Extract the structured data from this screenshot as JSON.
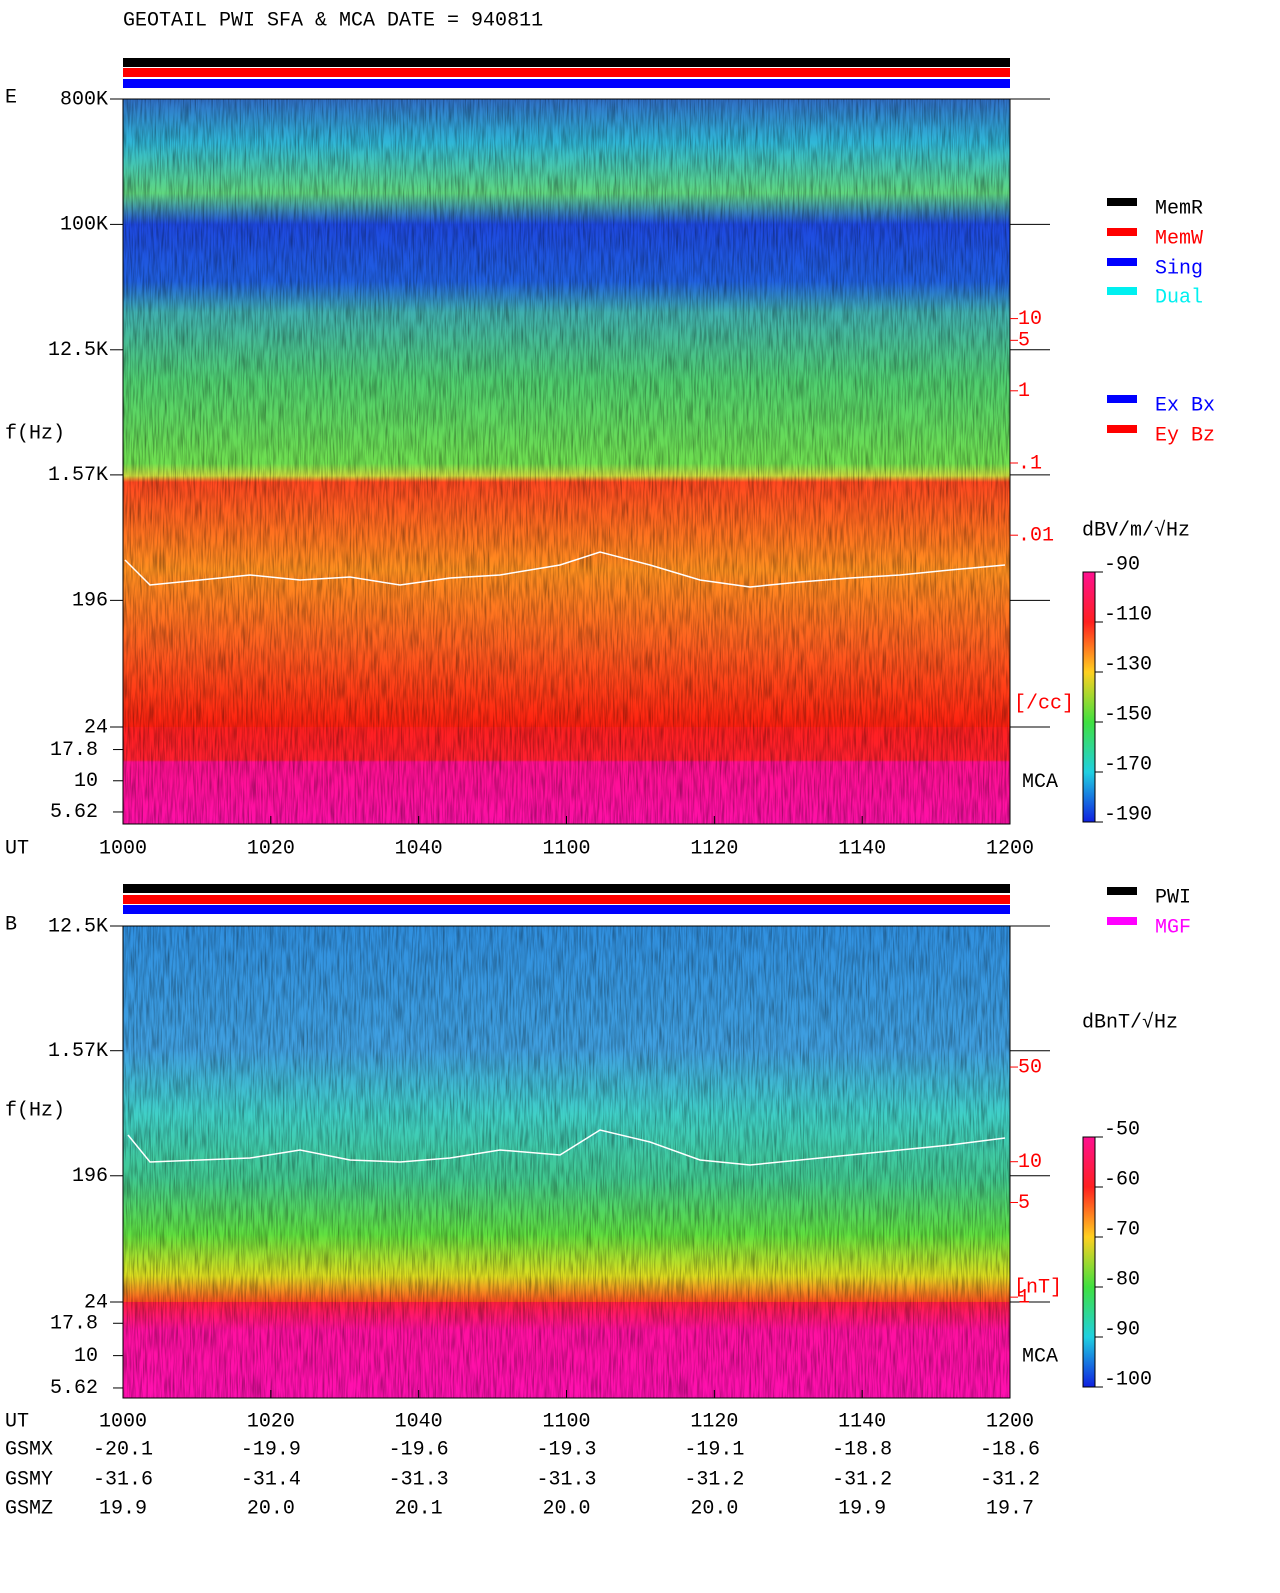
{
  "chart_data": [
    {
      "type": "spectrogram",
      "title": "GEOTAIL  PWI SFA & MCA   DATE = 940811",
      "panel_label": "E",
      "ylabel": "f(Hz)",
      "xlabel": "UT",
      "x_labels": [
        "1000",
        "1020",
        "1040",
        "1100",
        "1120",
        "1140",
        "1200"
      ],
      "log_y": true,
      "ylim": [
        24,
        800000
      ],
      "yticks": [
        {
          "value": 800000,
          "label": "800K"
        },
        {
          "value": 100000,
          "label": "100K"
        },
        {
          "value": 12500,
          "label": "12.5K"
        },
        {
          "value": 1570,
          "label": "1.57K"
        },
        196,
        24
      ],
      "mca_label": "MCA",
      "mca_ylim": [
        4.5,
        27
      ],
      "mca_yticks": [
        17.8,
        10,
        5.62
      ],
      "density_unit": "[/cc]",
      "density_color": "#ff0000",
      "density_lim": [
        1e-06,
        11000
      ],
      "density_ticks": [
        10,
        5,
        1,
        {
          "value": 0.1,
          "label": ".1"
        },
        {
          "value": 0.01,
          "label": ".01"
        }
      ],
      "colorbar_label": "dBV/m/√Hz",
      "clim": [
        -190,
        -90
      ],
      "cticks": [
        -90,
        -110,
        -130,
        -150,
        -170,
        -190
      ],
      "legend": [
        {
          "name": "MemR",
          "color": "#000000"
        },
        {
          "name": "MemW",
          "color": "#ff0000"
        },
        {
          "name": "Sing",
          "color": "#0000ff"
        },
        {
          "name": "Dual",
          "color": "#00f0f0"
        }
      ],
      "legend2": [
        {
          "name": "Ex Bx",
          "color": "#0000ff"
        },
        {
          "name": "Ey Bz",
          "color": "#ff0000"
        }
      ]
    },
    {
      "type": "spectrogram",
      "panel_label": "B",
      "ylabel": "f(Hz)",
      "xlabel": "UT",
      "x_labels": [
        "1000",
        "1020",
        "1040",
        "1100",
        "1120",
        "1140",
        "1200"
      ],
      "log_y": true,
      "ylim": [
        24,
        12500
      ],
      "yticks": [
        {
          "value": 12500,
          "label": "12.5K"
        },
        {
          "value": 1570,
          "label": "1.57K"
        },
        196,
        24
      ],
      "mca_label": "MCA",
      "mca_ylim": [
        4.7,
        26
      ],
      "mca_yticks": [
        17.8,
        10,
        5.62
      ],
      "density_unit": "[nT]",
      "density_color": "#ff0000",
      "density_lim": [
        0.18,
        550
      ],
      "density_ticks": [
        50,
        10,
        5,
        1
      ],
      "colorbar_label": "dBnT/√Hz",
      "clim": [
        -100,
        -50
      ],
      "cticks": [
        -50,
        -60,
        -70,
        -80,
        -90,
        -100
      ],
      "legend": [
        {
          "name": "PWI",
          "color": "#000000"
        },
        {
          "name": "MGF",
          "color": "#ff00ff"
        }
      ]
    }
  ],
  "ephemeris": {
    "rows": [
      {
        "label": "GSMX",
        "values": [
          "-20.1",
          "-19.9",
          "-19.6",
          "-19.3",
          "-19.1",
          "-18.8",
          "-18.6"
        ]
      },
      {
        "label": "GSMY",
        "values": [
          "-31.6",
          "-31.4",
          "-31.3",
          "-31.3",
          "-31.2",
          "-31.2",
          "-31.2"
        ]
      },
      {
        "label": "GSMZ",
        "values": [
          "19.9",
          "20.0",
          "20.1",
          "20.0",
          "20.0",
          "19.9",
          "19.7"
        ]
      }
    ]
  }
}
